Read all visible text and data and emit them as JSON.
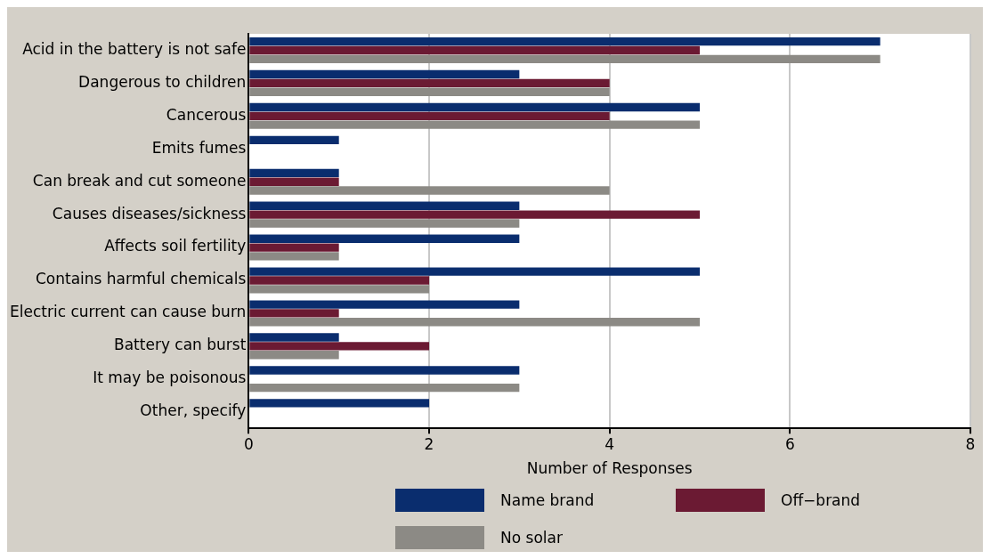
{
  "chart_data": {
    "type": "bar",
    "orientation": "horizontal",
    "xlabel": "Number of Responses",
    "categories": [
      "Acid in the battery is not safe",
      "Dangerous to children",
      "Cancerous",
      "Emits fumes",
      "Can break and cut someone",
      "Causes diseases/sickness",
      "Affects soil fertility",
      "Contains harmful chemicals",
      "Electric current can cause burn",
      "Battery can burst",
      "It may be poisonous",
      "Other, specify"
    ],
    "series": [
      {
        "name": "Name brand",
        "color": "#0a2d6e",
        "values": [
          7,
          3,
          5,
          1,
          1,
          3,
          3,
          5,
          3,
          1,
          3,
          2
        ]
      },
      {
        "name": "Off−brand",
        "color": "#6b1a33",
        "values": [
          5,
          4,
          4,
          0,
          1,
          5,
          1,
          2,
          1,
          2,
          0,
          0
        ]
      },
      {
        "name": "No solar",
        "color": "#8c8a85",
        "values": [
          7,
          4,
          5,
          0,
          4,
          3,
          1,
          2,
          5,
          1,
          3,
          0
        ]
      }
    ],
    "xlim": [
      0,
      8
    ],
    "xticks": [
      0,
      2,
      4,
      6,
      8
    ],
    "grid": "x",
    "legend": "bottom"
  }
}
